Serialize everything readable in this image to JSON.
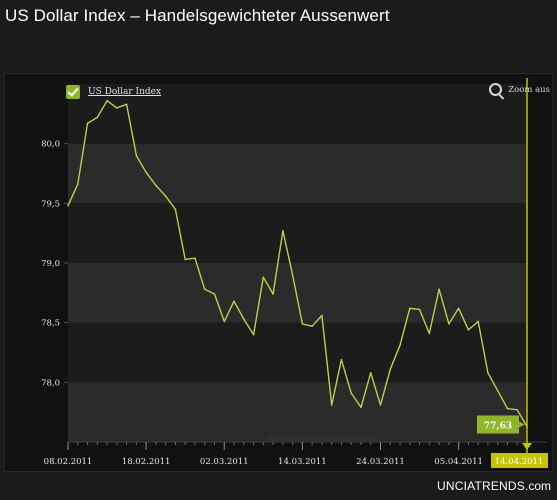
{
  "page": {
    "title": "US Dollar Index – Handelsgewichteter Aussenwert",
    "brand_name": "UNCIATRENDS",
    "brand_suffix": ".com",
    "zoom_label": "Zoom aus",
    "legend_label": "US Dollar Index"
  },
  "colors": {
    "background": "#1b1b1b",
    "plot_band_dark": "#1c1c1c",
    "plot_band_light": "#2b2b2b",
    "series_line": "#c3cc47",
    "marker_green": "#8fb52a",
    "marker_yellow": "#c4c400",
    "legend_check": "#8fb52a"
  },
  "icons": [
    "check-icon",
    "zoom-icon"
  ],
  "chart_data": {
    "type": "line",
    "title": "",
    "xlabel": "",
    "ylabel": "",
    "ylim": [
      77.5,
      80.5
    ],
    "yticks": [
      "80,0",
      "79,5",
      "79,0",
      "78,5",
      "78,0"
    ],
    "ytick_values": [
      80.0,
      79.5,
      79.0,
      78.5,
      78.0
    ],
    "xticks": [
      "08.02.2011",
      "18.02.2011",
      "02.03.2011",
      "14.03.2011",
      "24.03.2011",
      "05.04.2011",
      "14.04.2011"
    ],
    "xtick_index": [
      0,
      8,
      16,
      24,
      32,
      40,
      47
    ],
    "grid": true,
    "legend": "top-left",
    "series": [
      {
        "name": "US Dollar Index",
        "values": [
          79.48,
          79.66,
          80.17,
          80.22,
          80.36,
          80.3,
          80.33,
          79.9,
          79.76,
          79.65,
          79.56,
          79.45,
          79.03,
          79.04,
          78.78,
          78.74,
          78.51,
          78.68,
          78.53,
          78.4,
          78.88,
          78.74,
          79.27,
          78.9,
          78.49,
          78.47,
          78.56,
          77.81,
          78.19,
          77.91,
          77.79,
          78.08,
          77.81,
          78.11,
          78.31,
          78.62,
          78.61,
          78.41,
          78.78,
          78.49,
          78.62,
          78.44,
          78.51,
          78.08,
          77.93,
          77.78,
          77.77,
          77.63
        ]
      }
    ],
    "last_value_label": "77,63",
    "current_date_label": "14.04.2011"
  }
}
